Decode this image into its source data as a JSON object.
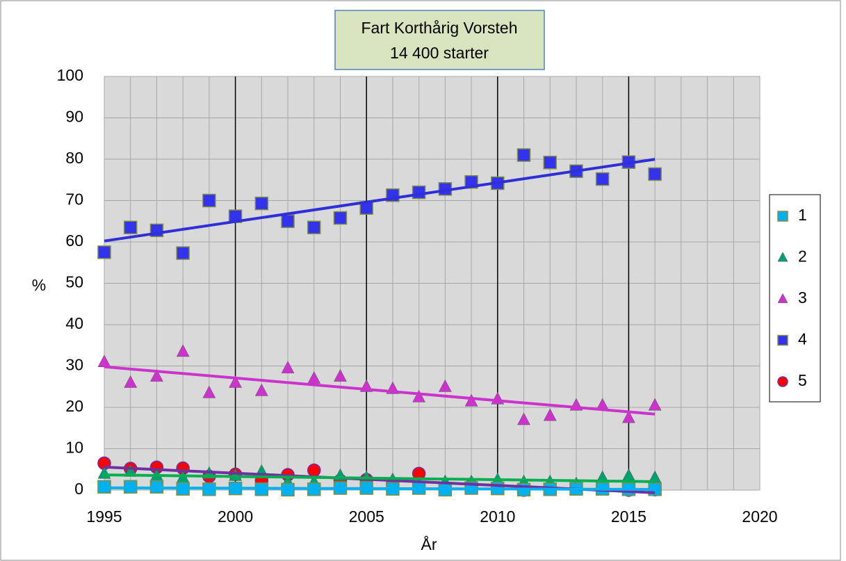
{
  "chart_data": {
    "type": "scatter",
    "title": [
      "Fart Korthårig Vorsteh",
      "14 400 starter"
    ],
    "xlabel": "År",
    "ylabel": "%",
    "x": [
      1995,
      1996,
      1997,
      1998,
      1999,
      2000,
      2001,
      2002,
      2003,
      2004,
      2005,
      2006,
      2007,
      2008,
      2009,
      2010,
      2011,
      2012,
      2013,
      2014,
      2015,
      2016
    ],
    "xlim": [
      1995,
      2020
    ],
    "xticks": [
      1995,
      2000,
      2005,
      2010,
      2015,
      2020
    ],
    "ylim": [
      0,
      100
    ],
    "yticks": [
      0,
      10,
      20,
      30,
      40,
      50,
      60,
      70,
      80,
      90,
      100
    ],
    "grid": true,
    "trendline": true,
    "legend": "right",
    "series": [
      {
        "name": "1",
        "marker": "square",
        "color": "#00b0f0",
        "trend_color": "#00b0f0",
        "values": [
          0.8,
          0.8,
          0.8,
          0.3,
          0.2,
          0.4,
          0.2,
          0.1,
          0.2,
          0.5,
          0.5,
          0.3,
          0.5,
          0.1,
          0.5,
          0.4,
          0.1,
          0.2,
          0.3,
          0.3,
          0.2,
          0.2
        ]
      },
      {
        "name": "2",
        "marker": "triangle",
        "color": "#00a070",
        "trend_color": "#00b050",
        "values": [
          4,
          4.5,
          3.5,
          3,
          4,
          3.5,
          4.5,
          2,
          2,
          3.5,
          3,
          2.5,
          1.5,
          2,
          2,
          2.5,
          2,
          2,
          1.5,
          3,
          3.5,
          3
        ]
      },
      {
        "name": "3",
        "marker": "triangle",
        "color": "#cc33cc",
        "trend_color": "#cc33cc",
        "values": [
          31,
          26,
          27.5,
          33.5,
          23.5,
          26,
          24,
          29.5,
          27,
          27.5,
          25,
          24.5,
          22.5,
          25,
          21.5,
          22,
          17,
          18,
          20.5,
          20.5,
          17.5,
          20.5
        ]
      },
      {
        "name": "4",
        "marker": "square",
        "color": "#3333ee",
        "trend_color": "#2f2fd8",
        "values": [
          57.5,
          63.5,
          62.8,
          57.3,
          70,
          66.2,
          69.3,
          65,
          63.5,
          65.8,
          68.2,
          71.3,
          72,
          72.8,
          74.5,
          74.2,
          81,
          79.2,
          77.1,
          75.2,
          79.3,
          76.4
        ]
      },
      {
        "name": "5",
        "marker": "circle",
        "color": "#ff0000",
        "trend_color": "#7030a0",
        "values": [
          6.5,
          5.2,
          5.5,
          5.3,
          3.3,
          3.8,
          2.3,
          3.7,
          4.8,
          2.3,
          2.5,
          1.5,
          4,
          0.5,
          1,
          0.5,
          0,
          0.2,
          0.3,
          0.8,
          0,
          0.1
        ]
      }
    ]
  }
}
